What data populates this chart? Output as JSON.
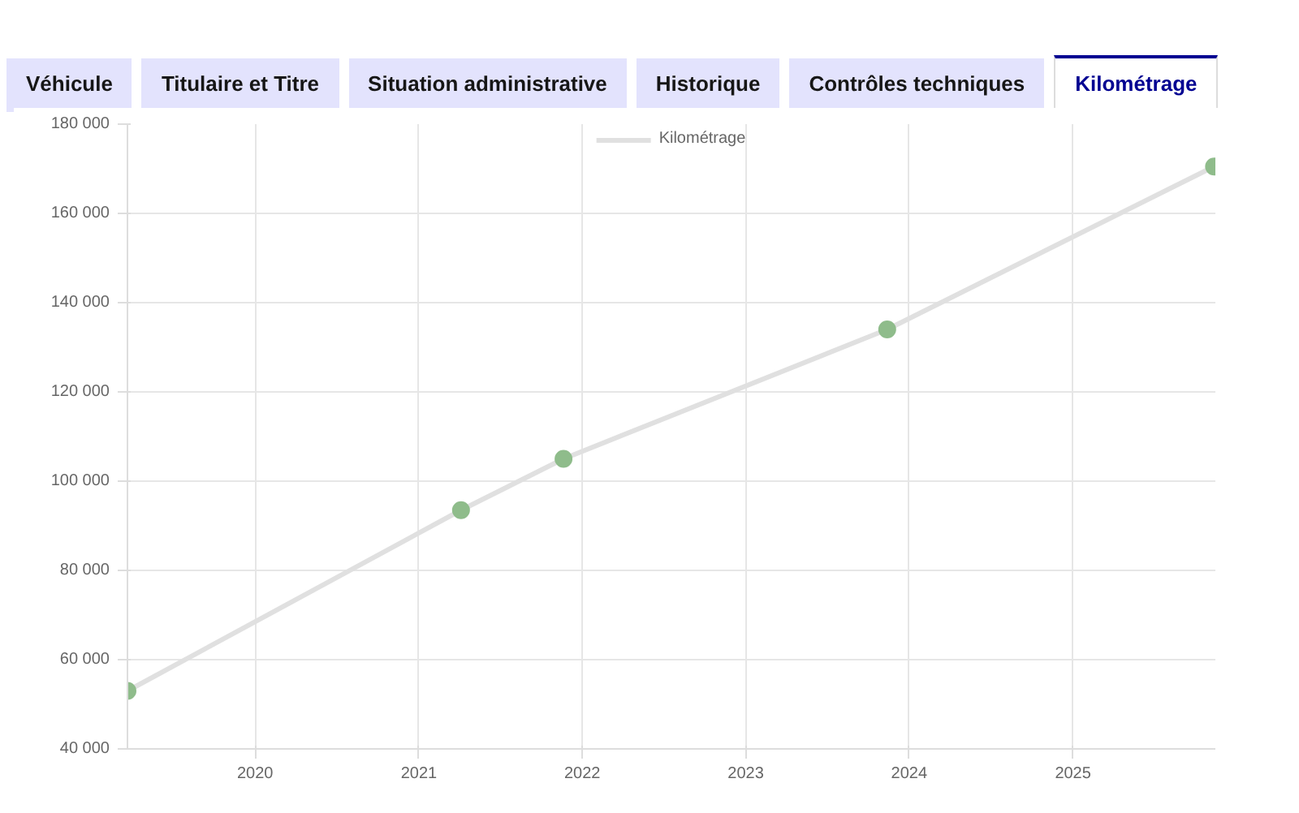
{
  "chart_data": {
    "type": "line",
    "annotations": [
      "Véhicule",
      "Titulaire et Titre",
      "Situation administrative",
      "Historique",
      "Contrôles techniques",
      "Kilométrage"
    ],
    "x": [
      "2019-03-22",
      "2021-04-05",
      "2021-11-20",
      "2023-11-13",
      "2025-11-12"
    ],
    "series": [
      {
        "name": "Kilométrage",
        "color": "#e0e0e0",
        "colors": [
          "#8fbc8b",
          "#8fbc8b",
          "#8fbc8b",
          "#8fbc8b",
          "#8fbc8b"
        ],
        "values": [
          53000,
          93500,
          105000,
          134000,
          170500
        ]
      }
    ],
    "xlim": [
      "2019-03-22",
      "2025-11-15"
    ],
    "xticks": [
      {
        "value": "2020",
        "label": "2020"
      },
      {
        "value": "2021",
        "label": "2021"
      },
      {
        "value": "2022",
        "label": "2022"
      },
      {
        "value": "2023",
        "label": "2023"
      },
      {
        "value": "2024",
        "label": "2024"
      },
      {
        "value": "2025",
        "label": "2025"
      }
    ],
    "ylim": [
      40000,
      180000
    ],
    "yticks": [
      {
        "value": 40000,
        "label": "40 000"
      },
      {
        "value": 60000,
        "label": "60 000"
      },
      {
        "value": 80000,
        "label": "80 000"
      },
      {
        "value": 100000,
        "label": "100 000"
      },
      {
        "value": 120000,
        "label": "120 000"
      },
      {
        "value": 140000,
        "label": "140 000"
      },
      {
        "value": 160000,
        "label": "160 000"
      },
      {
        "value": 180000,
        "label": "180 000"
      }
    ],
    "grid": true,
    "legend": "top",
    "marker": "circle",
    "line_style": "solid"
  }
}
